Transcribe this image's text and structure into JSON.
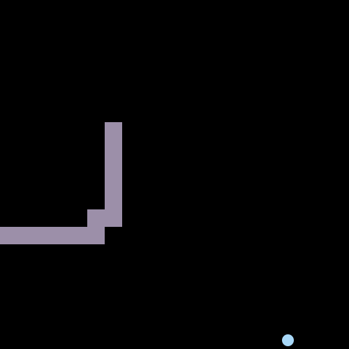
{
  "game": {
    "type": "snake",
    "grid": {
      "cols": 20,
      "rows": 20
    },
    "colors": {
      "background": "#000000",
      "snake": "#9c8fa9",
      "food": "#a8d8f8"
    },
    "snake": {
      "segments": [
        [
          6,
          7
        ],
        [
          6,
          8
        ],
        [
          6,
          9
        ],
        [
          6,
          10
        ],
        [
          6,
          11
        ],
        [
          6,
          12
        ],
        [
          5,
          12
        ],
        [
          5,
          13
        ],
        [
          4,
          13
        ],
        [
          3,
          13
        ],
        [
          2,
          13
        ],
        [
          1,
          13
        ],
        [
          0,
          13
        ]
      ]
    },
    "food": {
      "cell": [
        16,
        19
      ]
    }
  }
}
